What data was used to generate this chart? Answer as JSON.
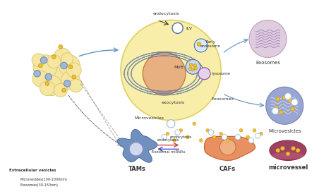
{
  "title": "",
  "background_color": "#ffffff",
  "labels": {
    "endocytosis_top": "endocytosis",
    "ILV": "ILV",
    "early_endosome": "Early\nendosome",
    "MVB": "MVB",
    "lysosome": "lysosome",
    "exocytosis": "exocytosis",
    "exosomes_cell": "Exosomes",
    "microvesicles_cell": "Microvesicles",
    "exosomes_right": "Exosomes",
    "microvesicles_right": "Microvesicles",
    "TAMs": "TAMs",
    "CAFs": "CAFs",
    "microvessel": "microvessel",
    "endocytosis_TAMs": "endocytosis",
    "endocytosis_CAFs": "endocytosis",
    "exosomal_miRNAs": "Exosomal miRNAs",
    "extracellular_vesicles": "Extracellular vesicles",
    "microvesicles_legend": "Microvesides(100-1000nm)",
    "exosomes_legend": "Exosomes(30-150nm)"
  },
  "cell_colors": {
    "tumor_mass": "#f5e6a0",
    "large_cell_outer": "#f5e6a0",
    "large_cell_nucleus": "#e8b080",
    "TAM_cell": "#6a8fbf",
    "CAF_cell": "#e89060",
    "microvessel_color": "#a04060",
    "exosome_dot": "#f0c030",
    "microvesicle_circle": "#a0b8d8",
    "right_exosome_blob": "#d0a0c0",
    "right_microvesicle_blob": "#8090c0"
  }
}
